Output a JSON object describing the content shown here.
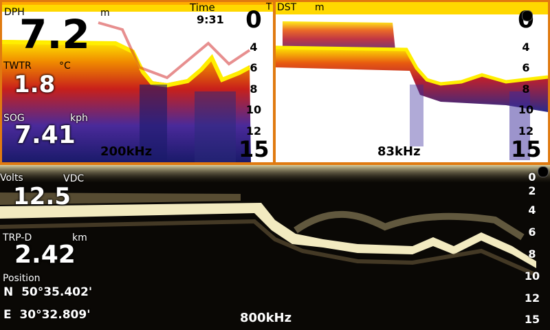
{
  "top_left": {
    "depth": {
      "label": "DPH",
      "unit": "m",
      "value": "7.2"
    },
    "water_temp": {
      "label": "TWTR",
      "unit": "°C",
      "value": "1.8"
    },
    "sog": {
      "label": "SOG",
      "unit": "kph",
      "value": "7.41"
    },
    "time": {
      "label": "Time",
      "value": "9:31",
      "marker": "T"
    },
    "frequency": "200kHz",
    "scale": {
      "top": "0",
      "ticks": [
        "4",
        "6",
        "8",
        "10",
        "12"
      ],
      "bottom": "15"
    }
  },
  "top_right": {
    "dst": {
      "label": "DST",
      "unit": "m"
    },
    "frequency": "83kHz",
    "scale": {
      "top": "0",
      "ticks": [
        "4",
        "6",
        "8",
        "10",
        "12"
      ],
      "bottom": "15"
    }
  },
  "bottom": {
    "volts": {
      "label": "Volts",
      "unit": "VDC",
      "value": "12.5"
    },
    "trip_distance": {
      "label": "TRP-D",
      "unit": "km",
      "value": "2.42"
    },
    "position": {
      "label": "Position",
      "lat": "N  50°35.402'",
      "lon": "E  30°32.809'"
    },
    "frequency": "800kHz",
    "scale": {
      "top": "0",
      "ticks": [
        "2",
        "4",
        "6",
        "8",
        "10",
        "12"
      ],
      "bottom": "15"
    }
  },
  "colors": {
    "frame": "#e07a10",
    "echo_strong": "#ffee00",
    "echo_mid": "#e83a00",
    "echo_weak": "#3a2a9a",
    "sidescan_bottom": "#f4ecc0"
  }
}
